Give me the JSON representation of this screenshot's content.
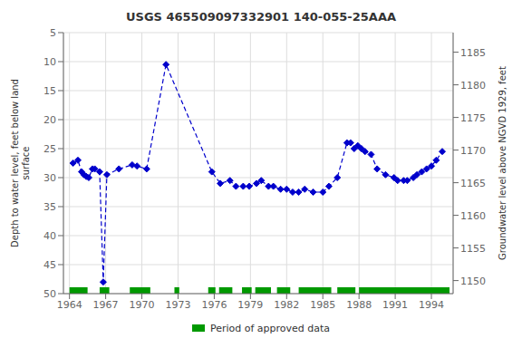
{
  "chart_data": {
    "type": "line",
    "title": "USGS 465509097332901 140-055-25AAA",
    "ylabel": "Depth to water level, feet below land\nsurface",
    "y2label": "Groundwater level above NGVD 1929, feet",
    "x": [
      1964.3,
      1964.7,
      1965.0,
      1965.2,
      1965.4,
      1965.6,
      1965.9,
      1966.1,
      1966.5,
      1966.8,
      1967.1,
      1968.1,
      1969.2,
      1969.6,
      1970.4,
      1972.0,
      1975.8,
      1976.5,
      1977.3,
      1977.8,
      1978.4,
      1978.9,
      1979.5,
      1979.9,
      1980.5,
      1980.9,
      1981.5,
      1982.0,
      1982.5,
      1983.0,
      1983.5,
      1984.2,
      1985.0,
      1985.5,
      1986.2,
      1987.0,
      1987.3,
      1987.6,
      1987.9,
      1988.2,
      1988.5,
      1989.0,
      1989.5,
      1990.2,
      1990.9,
      1991.2,
      1991.7,
      1992.0,
      1992.5,
      1992.8,
      1993.2,
      1993.6,
      1994.0,
      1994.4,
      1994.9
    ],
    "values": [
      27.5,
      27.0,
      29.0,
      29.5,
      29.8,
      30.0,
      28.5,
      28.5,
      29.0,
      48.0,
      29.5,
      28.5,
      27.8,
      28.0,
      28.5,
      10.5,
      29.0,
      31.0,
      30.5,
      31.5,
      31.5,
      31.5,
      31.0,
      30.5,
      31.5,
      31.5,
      32.0,
      32.0,
      32.5,
      32.5,
      32.0,
      32.5,
      32.5,
      31.5,
      30.0,
      24.0,
      24.0,
      25.0,
      24.5,
      25.0,
      25.5,
      26.0,
      28.5,
      29.5,
      30.0,
      30.5,
      30.5,
      30.5,
      30.0,
      29.5,
      29.0,
      28.5,
      28.0,
      27.0,
      25.5
    ],
    "color": "#0000cc",
    "marker": "diamond",
    "line_style": "dashed",
    "periods": {
      "name": "Period of approved data",
      "color": "#009900",
      "ranges": [
        [
          1964.0,
          1965.5
        ],
        [
          1966.5,
          1967.3
        ],
        [
          1969.0,
          1970.7
        ],
        [
          1972.7,
          1973.1
        ],
        [
          1975.5,
          1976.1
        ],
        [
          1976.4,
          1977.5
        ],
        [
          1978.3,
          1979.1
        ],
        [
          1979.4,
          1980.7
        ],
        [
          1981.2,
          1982.3
        ],
        [
          1983.0,
          1985.7
        ],
        [
          1986.2,
          1987.7
        ],
        [
          1988.0,
          1995.5
        ]
      ],
      "y": 49.5,
      "height": 1.2
    },
    "xlim": [
      1963.5,
      1995.8
    ],
    "xticks": [
      1964,
      1967,
      1970,
      1973,
      1976,
      1979,
      1982,
      1985,
      1988,
      1991,
      1994
    ],
    "ylim": [
      50,
      5
    ],
    "yticks": [
      5,
      10,
      15,
      20,
      25,
      30,
      35,
      40,
      45,
      50
    ],
    "y2lim": [
      1148,
      1188
    ],
    "y2ticks": [
      1185,
      1180,
      1175,
      1170,
      1165,
      1160,
      1155,
      1150
    ],
    "grid": true,
    "legend": "bottom"
  }
}
